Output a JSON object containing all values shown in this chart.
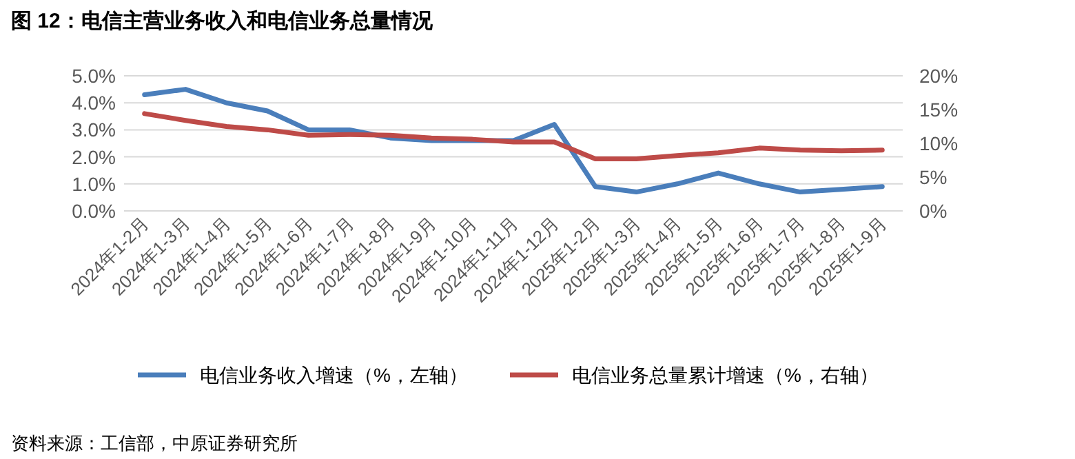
{
  "chart_data": {
    "type": "line",
    "title": "图 12：电信主营业务收入和电信业务总量情况",
    "categories": [
      "2024年1-2月",
      "2024年1-3月",
      "2024年1-4月",
      "2024年1-5月",
      "2024年1-6月",
      "2024年1-7月",
      "2024年1-8月",
      "2024年1-9月",
      "2024年1-10月",
      "2024年1-11月",
      "2024年1-12月",
      "2025年1-2月",
      "2025年1-3月",
      "2025年1-4月",
      "2025年1-5月",
      "2025年1-6月",
      "2025年1-7月",
      "2025年1-8月",
      "2025年1-9月"
    ],
    "series": [
      {
        "name": "电信业务收入增速（%，左轴）",
        "color": "#4a7ebb",
        "values": [
          4.3,
          4.5,
          4.0,
          3.7,
          3.0,
          3.0,
          2.7,
          2.6,
          2.6,
          2.6,
          3.2,
          0.9,
          0.7,
          1.0,
          1.4,
          1.0,
          0.7,
          0.8,
          0.9
        ]
      },
      {
        "name": "电信业务总量累计增速（%，右轴）",
        "color": "#be4b48",
        "axis": "y2",
        "values": [
          14.4,
          13.4,
          12.5,
          12.0,
          11.2,
          11.3,
          11.2,
          10.8,
          10.6,
          10.2,
          10.2,
          7.7,
          7.7,
          8.2,
          8.6,
          9.3,
          9.0,
          8.9,
          9.0
        ]
      }
    ],
    "ylim": [
      0,
      5
    ],
    "yticks": [
      {
        "value": 0,
        "label": "0.0%"
      },
      {
        "value": 1,
        "label": "1.0%"
      },
      {
        "value": 2,
        "label": "2.0%"
      },
      {
        "value": 3,
        "label": "3.0%"
      },
      {
        "value": 4,
        "label": "4.0%"
      },
      {
        "value": 5,
        "label": "5.0%"
      }
    ],
    "y2lim": [
      0,
      20
    ],
    "y2ticks": [
      {
        "value": 0,
        "label": "0%"
      },
      {
        "value": 5,
        "label": "5%"
      },
      {
        "value": 10,
        "label": "10%"
      },
      {
        "value": 15,
        "label": "15%"
      },
      {
        "value": 20,
        "label": "20%"
      }
    ],
    "grid": "y",
    "legend": "bottom",
    "marker": "none",
    "line_style": "solid",
    "annotations": [
      "资料来源：工信部，中原证券研究所"
    ]
  }
}
